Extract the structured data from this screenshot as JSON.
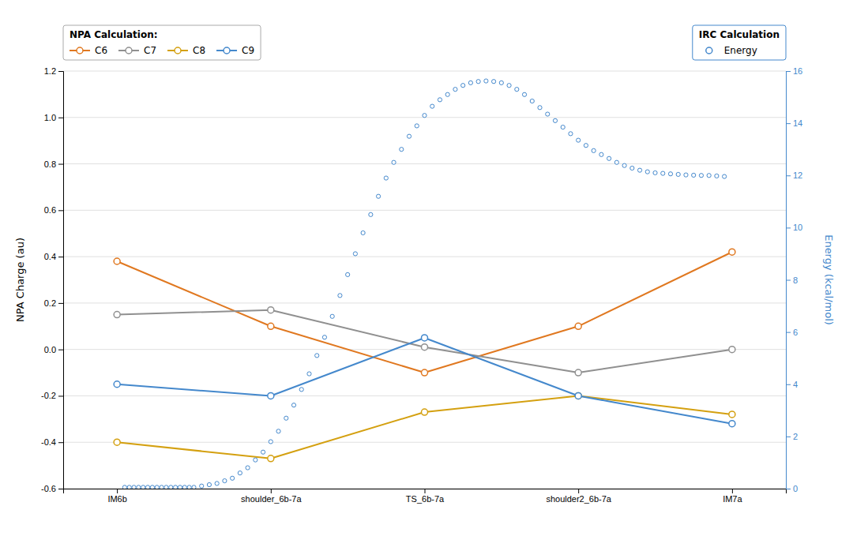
{
  "chart_data": {
    "type": "line",
    "ylabel": "NPA Charge (au)",
    "y2label": "Energy (kcal/mol)",
    "legend_titles": {
      "y": "NPA Calculation:",
      "y2": "IRC Calculation"
    },
    "legend": "top",
    "grid": true,
    "xlim": [
      -0.35,
      4.35
    ],
    "xticks": [
      {
        "value": 0,
        "label": "IM6b"
      },
      {
        "value": 1,
        "label": "shoulder_6b-7a"
      },
      {
        "value": 2,
        "label": "TS_6b-7a"
      },
      {
        "value": 3,
        "label": "shoulder2_6b-7a"
      },
      {
        "value": 4,
        "label": "IM7a"
      }
    ],
    "ylim": [
      -0.6,
      1.2
    ],
    "yticks": [
      -0.6,
      -0.4,
      -0.2,
      {
        "value": 0,
        "label": "0.0"
      },
      0.2,
      0.4,
      0.6,
      0.8,
      {
        "value": 1,
        "label": "1.0"
      },
      1.2
    ],
    "y2lim": [
      0,
      16
    ],
    "y2ticks": [
      0,
      2,
      4,
      6,
      8,
      10,
      12,
      14,
      16
    ],
    "series": [
      {
        "name": "C6",
        "color": "#E07820",
        "marker": "circle",
        "x": [
          0,
          1,
          2,
          3,
          4
        ],
        "values": [
          0.38,
          0.1,
          -0.1,
          0.1,
          0.42
        ]
      },
      {
        "name": "C7",
        "color": "#909090",
        "marker": "circle",
        "x": [
          0,
          1,
          2,
          3,
          4
        ],
        "values": [
          0.15,
          0.17,
          0.01,
          -0.1,
          0.0
        ]
      },
      {
        "name": "C8",
        "color": "#D4A010",
        "marker": "circle",
        "x": [
          0,
          1,
          2,
          3,
          4
        ],
        "values": [
          -0.4,
          -0.47,
          -0.27,
          -0.2,
          -0.28
        ]
      },
      {
        "name": "C9",
        "color": "#4488CC",
        "marker": "circle",
        "x": [
          0,
          1,
          2,
          3,
          4
        ],
        "values": [
          -0.15,
          -0.2,
          0.05,
          -0.2,
          -0.32
        ]
      },
      {
        "name": "Energy",
        "type": "scatter",
        "axis": "y2",
        "color": "#4488CC",
        "marker": "circle",
        "x": [
          0.05,
          0.08,
          0.11,
          0.14,
          0.17,
          0.2,
          0.23,
          0.26,
          0.29,
          0.32,
          0.35,
          0.38,
          0.41,
          0.44,
          0.47,
          0.5,
          0.55,
          0.6,
          0.65,
          0.7,
          0.75,
          0.8,
          0.85,
          0.9,
          0.95,
          1.0,
          1.05,
          1.1,
          1.15,
          1.2,
          1.25,
          1.3,
          1.35,
          1.4,
          1.45,
          1.5,
          1.55,
          1.6,
          1.65,
          1.7,
          1.75,
          1.8,
          1.85,
          1.9,
          1.95,
          2.0,
          2.05,
          2.1,
          2.15,
          2.2,
          2.25,
          2.3,
          2.35,
          2.4,
          2.45,
          2.5,
          2.55,
          2.6,
          2.65,
          2.7,
          2.75,
          2.8,
          2.85,
          2.9,
          2.95,
          3.0,
          3.05,
          3.1,
          3.15,
          3.2,
          3.25,
          3.3,
          3.35,
          3.4,
          3.45,
          3.5,
          3.55,
          3.6,
          3.65,
          3.7,
          3.75,
          3.8,
          3.85,
          3.9,
          3.95
        ],
        "values": [
          0.05,
          0.05,
          0.05,
          0.05,
          0.05,
          0.05,
          0.05,
          0.05,
          0.05,
          0.05,
          0.05,
          0.05,
          0.05,
          0.05,
          0.05,
          0.05,
          0.1,
          0.15,
          0.2,
          0.3,
          0.4,
          0.6,
          0.8,
          1.1,
          1.4,
          1.8,
          2.2,
          2.7,
          3.2,
          3.8,
          4.4,
          5.1,
          5.8,
          6.6,
          7.4,
          8.2,
          9.0,
          9.8,
          10.5,
          11.2,
          11.9,
          12.5,
          13.0,
          13.5,
          13.9,
          14.3,
          14.65,
          14.9,
          15.1,
          15.3,
          15.45,
          15.55,
          15.6,
          15.62,
          15.6,
          15.55,
          15.45,
          15.3,
          15.1,
          14.85,
          14.6,
          14.35,
          14.1,
          13.85,
          13.6,
          13.35,
          13.15,
          12.95,
          12.8,
          12.65,
          12.5,
          12.38,
          12.28,
          12.2,
          12.14,
          12.1,
          12.08,
          12.06,
          12.04,
          12.02,
          12.01,
          12.0,
          12.0,
          11.98,
          11.96
        ]
      }
    ]
  }
}
